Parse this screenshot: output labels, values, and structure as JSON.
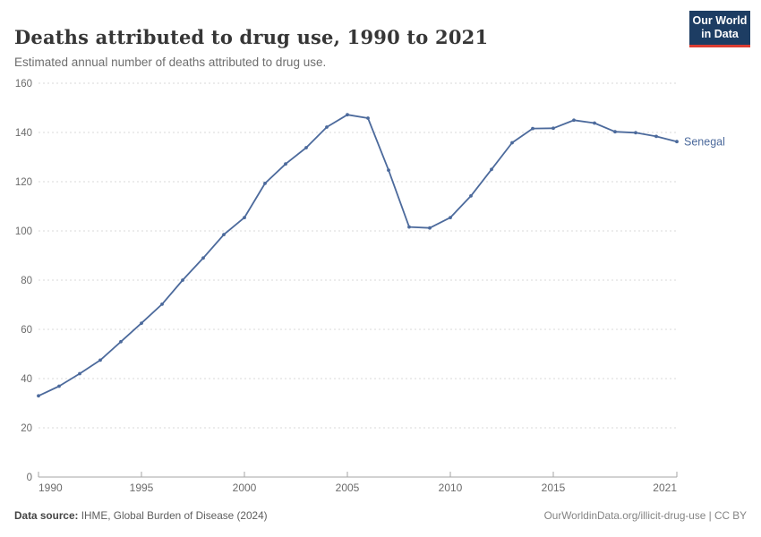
{
  "header": {
    "logo": {
      "line1": "Our World",
      "line2": "in Data",
      "bg_color": "#1d3d63",
      "stripe_color": "#dc3d33"
    }
  },
  "chart_data": {
    "type": "line",
    "title": "Deaths attributed to drug use, 1990 to 2021",
    "subtitle": "Estimated annual number of deaths attributed to drug use.",
    "xlabel": "",
    "ylabel": "",
    "xlim": [
      1990,
      2021
    ],
    "ylim": [
      0,
      160
    ],
    "x_ticks": [
      1990,
      1995,
      2000,
      2005,
      2010,
      2015,
      2021
    ],
    "y_ticks": [
      0,
      20,
      40,
      60,
      80,
      100,
      120,
      140,
      160
    ],
    "grid": "horizontal-dashed",
    "legend": "line-end-label",
    "colors": {
      "line": "#4c6a9c",
      "grid": "#d9d9d9",
      "axis": "#a6a6a6",
      "tick_text": "#6b6b6b"
    },
    "x": [
      1990,
      1991,
      1992,
      1993,
      1994,
      1995,
      1996,
      1997,
      1998,
      1999,
      2000,
      2001,
      2002,
      2003,
      2004,
      2005,
      2006,
      2007,
      2008,
      2009,
      2010,
      2011,
      2012,
      2013,
      2014,
      2015,
      2016,
      2017,
      2018,
      2019,
      2020,
      2021
    ],
    "series": [
      {
        "name": "Senegal",
        "color": "#4c6a9c",
        "values": [
          33,
          36.9,
          42,
          47.5,
          55,
          62.5,
          70.2,
          80,
          89,
          98.5,
          105.4,
          119.3,
          127.2,
          133.8,
          142.2,
          147.2,
          145.8,
          124.7,
          101.6,
          101.2,
          105.4,
          114.2,
          125,
          135.8,
          141.6,
          141.7,
          145,
          143.8,
          140.3,
          139.9,
          138.4,
          136.3
        ]
      }
    ]
  },
  "footer": {
    "datasource_label": "Data source:",
    "datasource_text": "IHME, Global Burden of Disease (2024)",
    "credit": "OurWorldinData.org/illicit-drug-use | CC BY"
  }
}
